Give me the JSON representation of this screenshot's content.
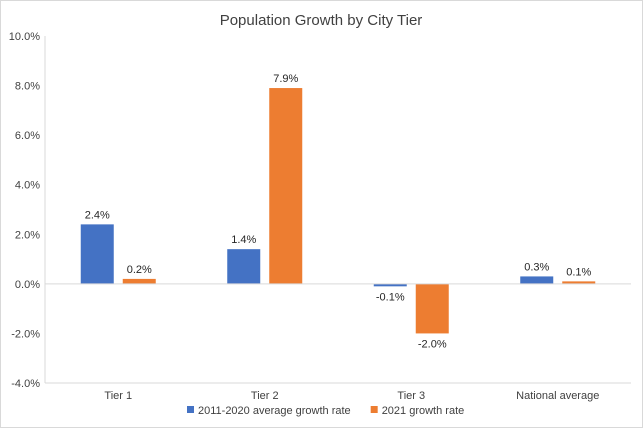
{
  "chart_data": {
    "type": "bar",
    "title": "Population  Growth by City Tier",
    "xlabel": "",
    "ylabel": "",
    "categories": [
      "Tier 1",
      "Tier 2",
      "Tier 3",
      "National average"
    ],
    "series": [
      {
        "name": "2011-2020 average growth rate",
        "color": "#4472c4",
        "values": [
          2.4,
          1.4,
          -0.1,
          0.3
        ],
        "labels": [
          "2.4%",
          "1.4%",
          "-0.1%",
          "0.3%"
        ]
      },
      {
        "name": "2021 growth rate",
        "color": "#ed7d31",
        "values": [
          0.2,
          7.9,
          -2.0,
          0.1
        ],
        "labels": [
          "0.2%",
          "7.9%",
          "-2.0%",
          "0.1%"
        ]
      }
    ],
    "ylim": [
      -4,
      10
    ],
    "yticks": [
      10,
      8,
      6,
      4,
      2,
      0,
      -2,
      -4
    ],
    "ytick_labels": [
      "10.0%",
      "8.0%",
      "6.0%",
      "4.0%",
      "2.0%",
      "0.0%",
      "-2.0%",
      "-4.0%"
    ],
    "grid": false,
    "legend_position": "bottom"
  }
}
